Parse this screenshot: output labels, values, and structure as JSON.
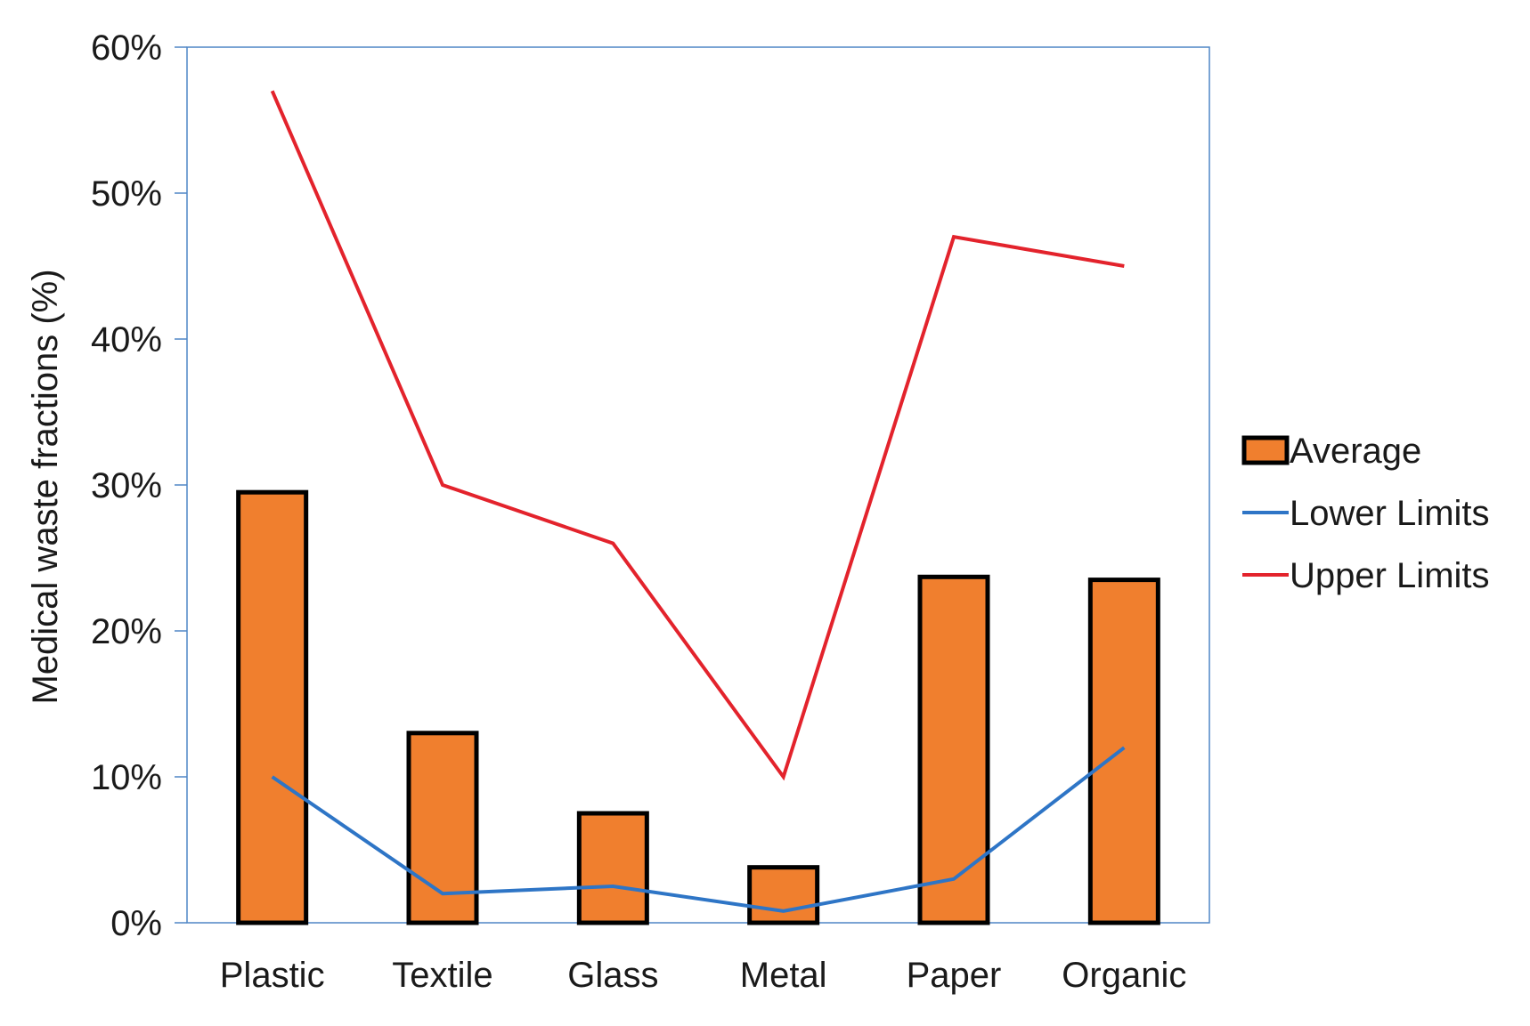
{
  "chart_data": {
    "type": "bar",
    "title": "",
    "xlabel": "",
    "ylabel": "Medical waste fractions  (%)",
    "ylim": [
      0,
      60
    ],
    "y_ticks": [
      0,
      10,
      20,
      30,
      40,
      50,
      60
    ],
    "y_tick_labels": [
      "0%",
      "10%",
      "20%",
      "30%",
      "40%",
      "50%",
      "60%"
    ],
    "categories": [
      "Plastic",
      "Textile",
      "Glass",
      "Metal",
      "Paper",
      "Organic"
    ],
    "grid": false,
    "legend_position": "right",
    "series": [
      {
        "name": "Average",
        "type": "bar",
        "color": "#f07f2e",
        "edge_color": "#000000",
        "values": [
          29.5,
          13,
          7.5,
          3.8,
          23.7,
          23.5
        ]
      },
      {
        "name": "Lower Limits",
        "type": "line",
        "color": "#2e75c6",
        "values": [
          10,
          2,
          2.5,
          0.8,
          3,
          12
        ]
      },
      {
        "name": "Upper Limits",
        "type": "line",
        "color": "#e3232c",
        "values": [
          57,
          30,
          26,
          10,
          47,
          45
        ]
      }
    ],
    "frame_color": "#4f86c6"
  }
}
